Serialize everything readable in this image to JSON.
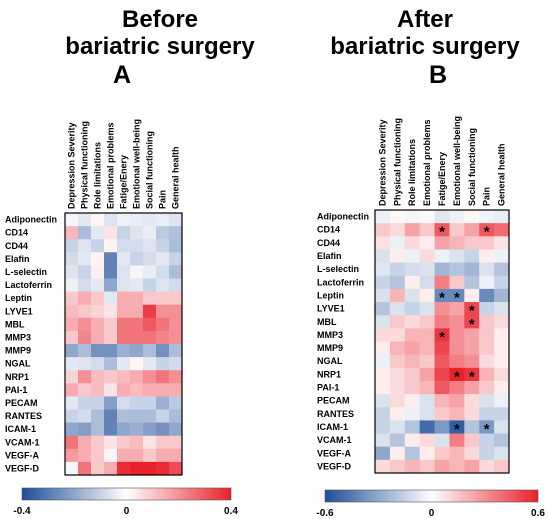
{
  "panels": [
    {
      "title_line1": "Before",
      "title_line2": "bariatric surgery",
      "letter": "A"
    },
    {
      "title_line1": "After",
      "title_line2": "bariatric surgery",
      "letter": "B"
    }
  ],
  "chart_data": [
    {
      "type": "heatmap",
      "columns": [
        "Depression Severity",
        "Physical functioning",
        "Role limitations",
        "Emotional problems",
        "Fatige/Enery",
        "Emotional well-being",
        "Social functioning",
        "Pain",
        "General health"
      ],
      "rows": [
        "Adiponectin",
        "CD14",
        "CD44",
        "Elafin",
        "L-selectin",
        "Lactoferrin",
        "Leptin",
        "LYVE1",
        "MBL",
        "MMP3",
        "MMP9",
        "NGAL",
        "NRP1",
        "PAI-1",
        "PECAM",
        "RANTES",
        "ICAM-1",
        "VCAM-1",
        "VEGF-A",
        "VEGF-D"
      ],
      "values": [
        [
          -0.02,
          -0.05,
          0.02,
          -0.06,
          -0.03,
          -0.04,
          -0.05,
          -0.04,
          -0.06
        ],
        [
          0.13,
          -0.15,
          -0.05,
          0.05,
          -0.1,
          -0.06,
          -0.04,
          -0.12,
          -0.14
        ],
        [
          -0.1,
          -0.06,
          -0.1,
          0.02,
          -0.08,
          -0.08,
          -0.06,
          -0.1,
          -0.15
        ],
        [
          -0.08,
          -0.05,
          0.02,
          -0.28,
          -0.05,
          -0.1,
          -0.08,
          -0.05,
          -0.1
        ],
        [
          -0.06,
          -0.1,
          0.03,
          -0.28,
          -0.06,
          -0.02,
          -0.04,
          -0.08,
          -0.15
        ],
        [
          -0.03,
          -0.08,
          -0.05,
          -0.2,
          -0.06,
          -0.05,
          -0.1,
          -0.06,
          -0.08
        ],
        [
          0.1,
          0.15,
          0.1,
          -0.05,
          0.15,
          0.15,
          0.1,
          0.1,
          0.1
        ],
        [
          0.12,
          0.1,
          0.08,
          0.05,
          0.15,
          0.15,
          0.35,
          0.2,
          0.2
        ],
        [
          0.15,
          0.2,
          0.15,
          0.1,
          0.25,
          0.25,
          0.3,
          0.25,
          0.2
        ],
        [
          0.1,
          0.22,
          0.15,
          0.1,
          0.25,
          0.25,
          0.25,
          0.22,
          0.2
        ],
        [
          -0.2,
          -0.15,
          -0.25,
          -0.25,
          -0.18,
          -0.2,
          -0.15,
          -0.25,
          -0.15
        ],
        [
          -0.05,
          -0.06,
          -0.08,
          -0.15,
          -0.05,
          0.02,
          -0.05,
          -0.1,
          -0.08
        ],
        [
          0.08,
          0.2,
          0.12,
          0.1,
          0.12,
          0.15,
          0.2,
          0.25,
          0.2
        ],
        [
          0.15,
          0.1,
          0.12,
          0.05,
          0.15,
          0.12,
          0.15,
          0.15,
          0.15
        ],
        [
          -0.05,
          -0.1,
          -0.1,
          -0.22,
          -0.08,
          -0.1,
          -0.1,
          -0.18,
          -0.12
        ],
        [
          -0.1,
          -0.08,
          -0.15,
          -0.28,
          -0.15,
          -0.15,
          -0.15,
          -0.1,
          -0.15
        ],
        [
          -0.2,
          -0.22,
          -0.15,
          -0.28,
          -0.2,
          -0.18,
          -0.22,
          -0.25,
          -0.2
        ],
        [
          0.25,
          0.15,
          0.1,
          0.05,
          0.1,
          0.12,
          0.05,
          0.1,
          0.1
        ],
        [
          0.18,
          0.15,
          0.1,
          0.02,
          0.15,
          0.15,
          0.1,
          0.15,
          0.15
        ],
        [
          -0.02,
          0.25,
          0.1,
          0.15,
          0.38,
          0.4,
          0.4,
          0.38,
          0.32
        ]
      ],
      "colorbar": {
        "min": -0.4,
        "max": 0.4,
        "tick_labels": [
          "-0.4",
          "0",
          "0.4"
        ]
      },
      "significant": []
    },
    {
      "type": "heatmap",
      "columns": [
        "Depression Severity",
        "Physical functioning",
        "Role limitations",
        "Emotional problems",
        "Fatige/Enery",
        "Emotional well-being",
        "Social functioning",
        "Pain",
        "General health"
      ],
      "rows": [
        "Adiponectin",
        "CD14",
        "CD44",
        "Elafin",
        "L-selectin",
        "Lactoferrin",
        "Leptin",
        "LYVE1",
        "MBL",
        "MMP3",
        "MMP9",
        "NGAL",
        "NRP1",
        "PAI-1",
        "PECAM",
        "RANTES",
        "ICAM-1",
        "VCAM-1",
        "VEGF-A",
        "VEGF-D"
      ],
      "values": [
        [
          -0.05,
          0.02,
          -0.03,
          0.02,
          -0.08,
          -0.05,
          0.02,
          -0.04,
          -0.06
        ],
        [
          0.15,
          0.1,
          0.25,
          0.15,
          0.45,
          0.15,
          0.25,
          0.45,
          0.4
        ],
        [
          0.08,
          -0.05,
          0.1,
          0.05,
          0.25,
          0.2,
          0.15,
          0.15,
          0.08
        ],
        [
          -0.1,
          0.05,
          -0.05,
          0.1,
          -0.05,
          -0.1,
          -0.15,
          0.05,
          -0.05
        ],
        [
          -0.08,
          -0.15,
          -0.12,
          -0.1,
          -0.25,
          -0.2,
          -0.25,
          -0.1,
          -0.2
        ],
        [
          -0.15,
          -0.2,
          0.05,
          -0.12,
          0.35,
          0.15,
          -0.2,
          -0.05,
          -0.15
        ],
        [
          -0.1,
          0.2,
          -0.1,
          0.05,
          -0.4,
          -0.4,
          0.05,
          -0.4,
          -0.25
        ],
        [
          -0.2,
          -0.1,
          -0.15,
          -0.1,
          0.3,
          0.25,
          0.5,
          -0.15,
          -0.1
        ],
        [
          -0.1,
          0.15,
          0.1,
          0.15,
          0.35,
          0.3,
          0.5,
          0.15,
          0.1
        ],
        [
          0.1,
          0.1,
          0.2,
          0.2,
          0.55,
          0.3,
          0.25,
          0.15,
          0.05
        ],
        [
          0.05,
          0.2,
          0.25,
          0.2,
          0.5,
          0.3,
          0.25,
          0.15,
          0.05
        ],
        [
          -0.05,
          0.15,
          0.2,
          0.15,
          0.45,
          0.35,
          0.3,
          0.1,
          0.05
        ],
        [
          0.05,
          0.1,
          0.15,
          0.25,
          0.5,
          0.6,
          0.55,
          0.2,
          0.1
        ],
        [
          0.05,
          0.1,
          0.15,
          0.2,
          0.45,
          0.35,
          0.25,
          0.15,
          0.05
        ],
        [
          -0.1,
          0.1,
          0.05,
          -0.1,
          0.2,
          0.25,
          0.1,
          -0.1,
          -0.05
        ],
        [
          -0.15,
          0.05,
          -0.05,
          -0.1,
          0.15,
          0.2,
          0.1,
          -0.15,
          -0.15
        ],
        [
          -0.15,
          -0.1,
          -0.2,
          -0.5,
          -0.35,
          -0.55,
          -0.2,
          -0.35,
          -0.1
        ],
        [
          -0.1,
          -0.2,
          0.05,
          0.1,
          -0.1,
          0.35,
          0.15,
          -0.15,
          -0.2
        ],
        [
          -0.3,
          0.05,
          -0.2,
          0.05,
          0.15,
          0.2,
          0.1,
          -0.15,
          -0.1
        ],
        [
          0.1,
          0.15,
          0.2,
          0.15,
          0.25,
          0.2,
          0.25,
          0.1,
          0.15
        ]
      ],
      "colorbar": {
        "min": -0.6,
        "max": 0.6,
        "tick_labels": [
          "-0.6",
          "0",
          "0.6"
        ]
      },
      "significant": [
        [
          1,
          4
        ],
        [
          1,
          7
        ],
        [
          6,
          4
        ],
        [
          6,
          5
        ],
        [
          7,
          6
        ],
        [
          8,
          6
        ],
        [
          9,
          4
        ],
        [
          12,
          5
        ],
        [
          12,
          6
        ],
        [
          16,
          5
        ],
        [
          16,
          7
        ]
      ],
      "significance_marker": "*"
    }
  ]
}
